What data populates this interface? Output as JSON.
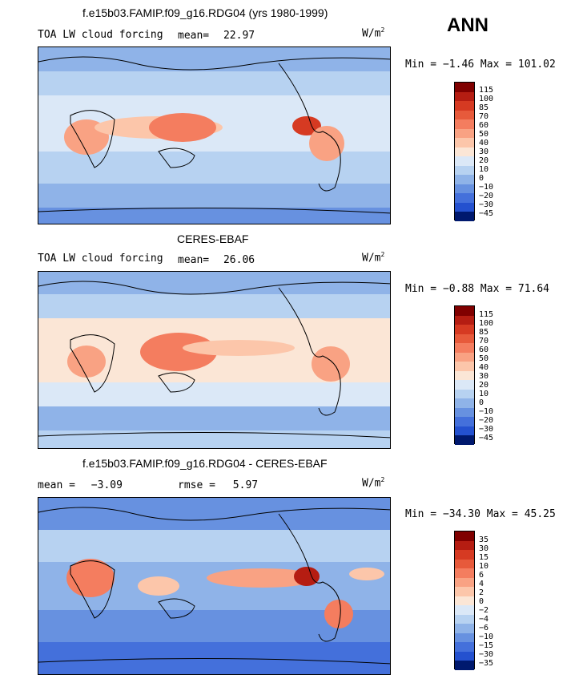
{
  "season": "ANN",
  "panels": [
    {
      "title": "f.e15b03.FAMIP.f09_g16.RDG04 (yrs 1980-1999)",
      "field": "TOA LW cloud forcing",
      "mean_label": "mean=",
      "mean": "22.97",
      "units": "W/m",
      "units_sup": "2",
      "minmax": "Min =  −1.46 Max = 101.02",
      "colorbar": [
        "115",
        "100",
        "85",
        "70",
        "60",
        "50",
        "40",
        "30",
        "20",
        "10",
        "0",
        "−10",
        "−20",
        "−30",
        "−45"
      ]
    },
    {
      "title": "CERES-EBAF",
      "field": "TOA LW cloud forcing",
      "mean_label": "mean=",
      "mean": "26.06",
      "units": "W/m",
      "units_sup": "2",
      "minmax": "Min =  −0.88 Max =  71.64",
      "colorbar": [
        "115",
        "100",
        "85",
        "70",
        "60",
        "50",
        "40",
        "30",
        "20",
        "10",
        "0",
        "−10",
        "−20",
        "−30",
        "−45"
      ]
    },
    {
      "title": "f.e15b03.FAMIP.f09_g16.RDG04 - CERES-EBAF",
      "mean_label": "mean =",
      "mean": "−3.09",
      "rmse_label": "rmse =",
      "rmse": "5.97",
      "units": "W/m",
      "units_sup": "2",
      "minmax": "Min = −34.30 Max =  45.25",
      "colorbar": [
        "35",
        "30",
        "15",
        "10",
        "6",
        "4",
        "2",
        "0",
        "−2",
        "−4",
        "−6",
        "−10",
        "−15",
        "−30",
        "−35"
      ]
    }
  ],
  "colors": {
    "cbar": [
      "#800000",
      "#b51d12",
      "#d63a22",
      "#e75a3b",
      "#f47d5f",
      "#f9a283",
      "#fcc6aa",
      "#fbe6d6",
      "#dbe8f7",
      "#b7d2f1",
      "#8fb3e8",
      "#6791e0",
      "#4470db",
      "#2451cf",
      "#0e2fa8",
      "#00196e"
    ]
  }
}
